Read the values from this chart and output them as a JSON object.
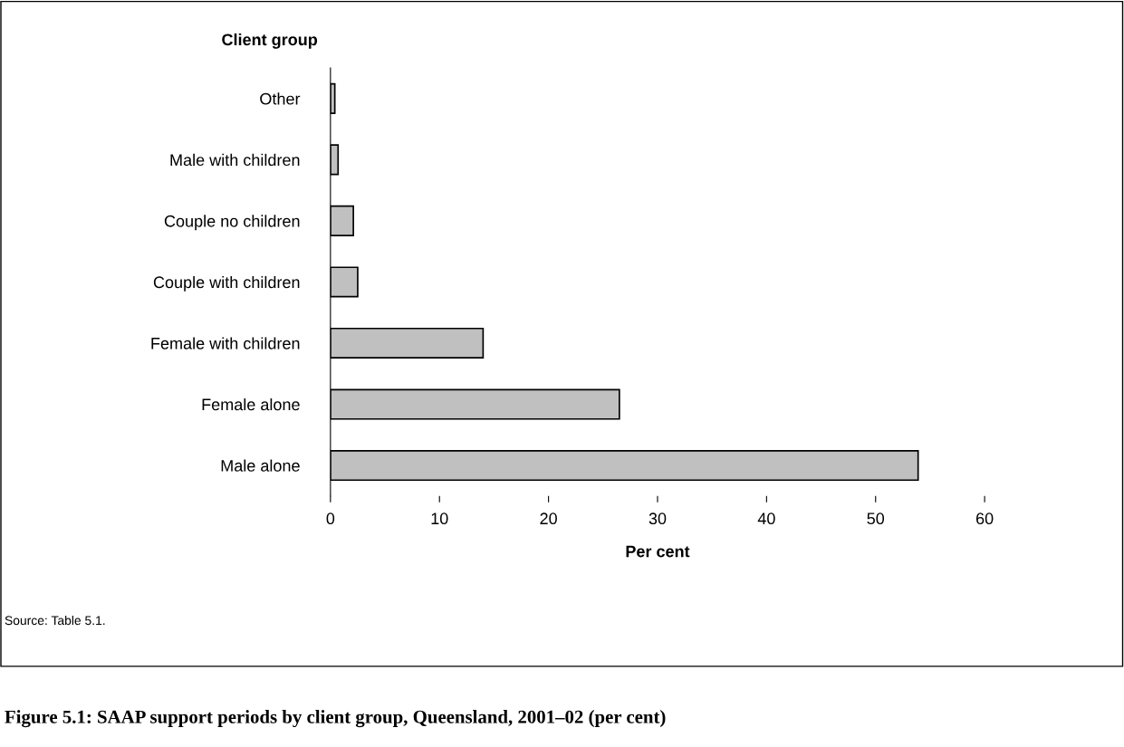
{
  "chart_data": {
    "type": "bar",
    "orientation": "horizontal",
    "title": "Figure 5.1: SAAP support periods by client group, Queensland, 2001–02 (per cent)",
    "ylabel": "Client group",
    "xlabel": "Per cent",
    "categories": [
      "Other",
      "Male with children",
      "Couple no children",
      "Couple with children",
      "Female with children",
      "Female alone",
      "Male alone"
    ],
    "values": [
      0.4,
      0.7,
      2.1,
      2.5,
      14.0,
      26.5,
      53.9
    ],
    "color": "#c0c0c0",
    "xlim": [
      0,
      60
    ],
    "xticks": [
      0,
      10,
      20,
      30,
      40,
      50,
      60
    ],
    "grid": false,
    "legend": false,
    "annotations": [
      "Source: Table 5.1."
    ]
  }
}
